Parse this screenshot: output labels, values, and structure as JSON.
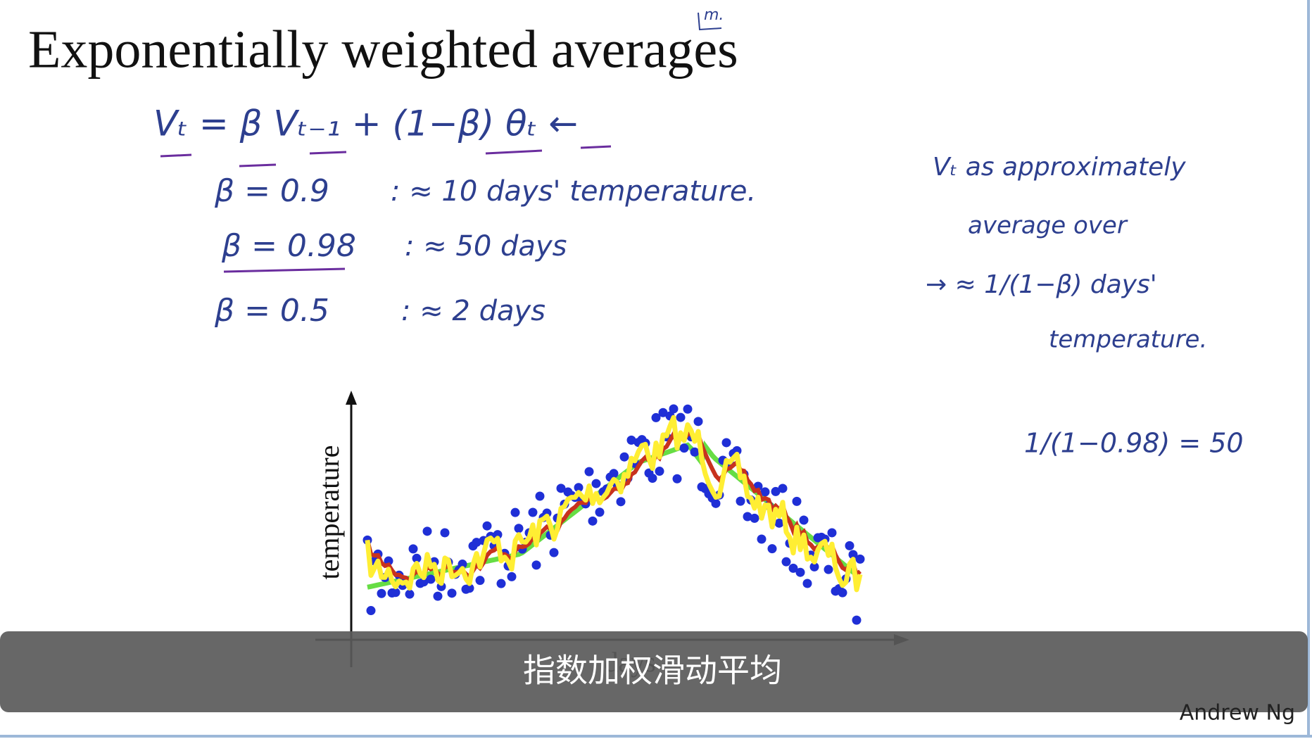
{
  "slide": {
    "title": "Exponentially weighted averages",
    "corner_note": "m.",
    "formula": "Vₜ = β Vₜ₋₁ + (1−β) θₜ ←",
    "rows": [
      {
        "beta": "β = 0.9",
        "meaning": ": ≈ 10 days' temperature."
      },
      {
        "beta": "β = 0.98",
        "meaning": ": ≈ 50 days"
      },
      {
        "beta": "β = 0.5",
        "meaning": ": ≈ 2 days"
      }
    ],
    "side_notes": [
      "Vₜ as approximately",
      "average over",
      "→ ≈ 1/(1−β) days'",
      "temperature."
    ],
    "example": "1/(1−0.98) = 50",
    "plot": {
      "y_label": "temperature",
      "x_label": "days"
    },
    "author": "Andrew Ng"
  },
  "subtitle": "指数加权滑动平均"
}
